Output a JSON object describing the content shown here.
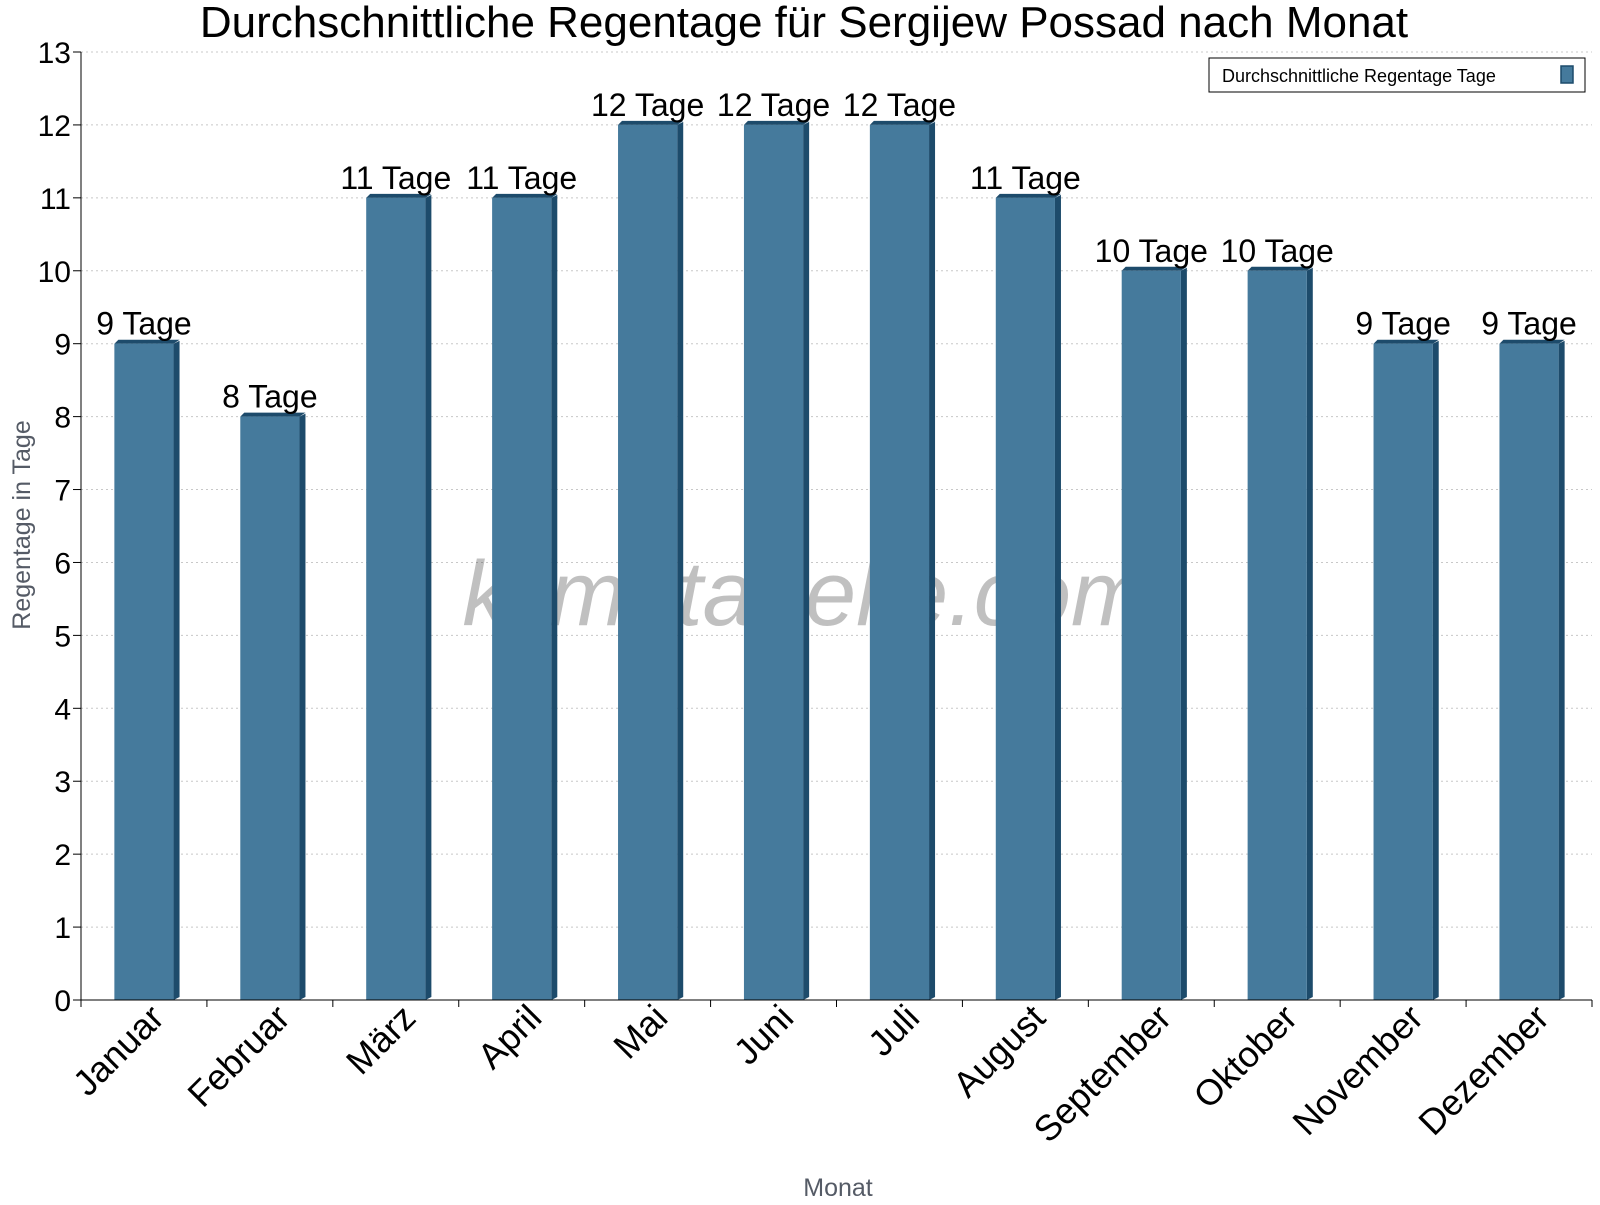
{
  "chart_data": {
    "type": "bar",
    "title": "Durchschnittliche Regentage für Sergijew Possad nach Monat",
    "xlabel": "Monat",
    "ylabel": "Regentage in Tage",
    "categories": [
      "Januar",
      "Februar",
      "März",
      "April",
      "Mai",
      "Juni",
      "Juli",
      "August",
      "September",
      "Oktober",
      "November",
      "Dezember"
    ],
    "series": [
      {
        "name": "Durchschnittliche Regentage Tage",
        "values": [
          9,
          8,
          11,
          11,
          12,
          12,
          12,
          11,
          10,
          10,
          9,
          9
        ],
        "labels": [
          "9 Tage",
          "8 Tage",
          "11 Tage",
          "11 Tage",
          "12 Tage",
          "12 Tage",
          "12 Tage",
          "11 Tage",
          "10 Tage",
          "10 Tage",
          "9 Tage",
          "9 Tage"
        ]
      }
    ],
    "ylim": [
      0,
      13
    ],
    "yticks": [
      "0",
      "1",
      "2",
      "3",
      "4",
      "5",
      "6",
      "7",
      "8",
      "9",
      "10",
      "11",
      "12",
      "13"
    ],
    "grid": true,
    "legend_position": "top-right",
    "bar_color": "#457a9c",
    "bar_dark_color": "#1d4b6b",
    "watermark": "klimatabelle.com"
  }
}
